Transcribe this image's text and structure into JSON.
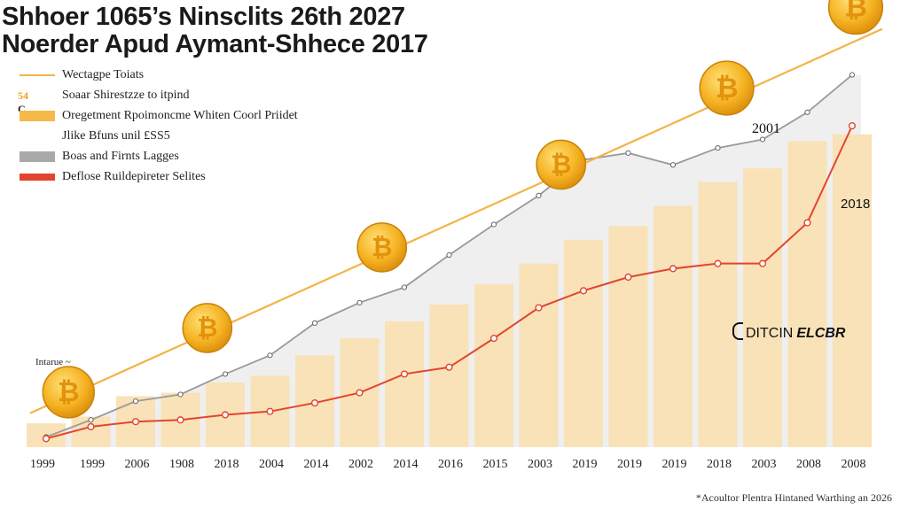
{
  "chart_data": {
    "type": "bar",
    "title": [
      "Shhoer 1065’s Ninsclits 26th 2027",
      "Noerder Apud Aymant-Shhece 2017"
    ],
    "categories": [
      "1999",
      "1999",
      "2006",
      "1908",
      "2018",
      "2004",
      "2014",
      "2002",
      "2014",
      "2016",
      "2015",
      "2003",
      "2019",
      "2019",
      "2019",
      "2018",
      "2003",
      "2008",
      "2008"
    ],
    "series": [
      {
        "name": "Wectagpe Toiats",
        "type": "line",
        "values": [
          40,
          65,
          85,
          110,
          132,
          157,
          181,
          206,
          231,
          255,
          280,
          305,
          330,
          355,
          380,
          405,
          429,
          454,
          478
        ]
      },
      {
        "name": "Oregetment Rpoimoncme Whiten Coorl Priidet",
        "type": "bar",
        "values": [
          7,
          9,
          15,
          16,
          19,
          21,
          27,
          32,
          37,
          42,
          48,
          54,
          61,
          65,
          71,
          78,
          82,
          90,
          92
        ]
      },
      {
        "name": "Boas and Firnts Lagges",
        "type": "area",
        "values": [
          12,
          32,
          54,
          62,
          86,
          108,
          146,
          170,
          188,
          226,
          262,
          296,
          338,
          346,
          332,
          352,
          362,
          394,
          438
        ]
      },
      {
        "name": "Deflose Ruildepireter Selites",
        "type": "line",
        "values": [
          10,
          24,
          30,
          32,
          38,
          42,
          52,
          64,
          86,
          94,
          128,
          164,
          184,
          200,
          210,
          216,
          216,
          264,
          378
        ]
      }
    ],
    "legend_extra": {
      "prefix": "54",
      "prefix_c": "C",
      "lines": [
        "Soaar Shirestzze to itpind",
        "Jlike Bfuns unil £SS5"
      ]
    },
    "annotations": [
      "2001",
      "2018",
      "Intarue ~"
    ],
    "grid": false,
    "legend": "top-left"
  },
  "brand": {
    "left": "DITCIN",
    "right": "ELCBR"
  },
  "footer": "*Acoultor Plentra Hintaned Warthing an 2026",
  "colors": {
    "trend": "#f2b445",
    "bars": "#f9e2b8",
    "area": "#e9e9e9",
    "area_line": "#9a9a9a",
    "red_line": "#e2452f",
    "coin": "#f5b323"
  },
  "icons": {
    "coin": "bitcoin-coin-icon"
  }
}
